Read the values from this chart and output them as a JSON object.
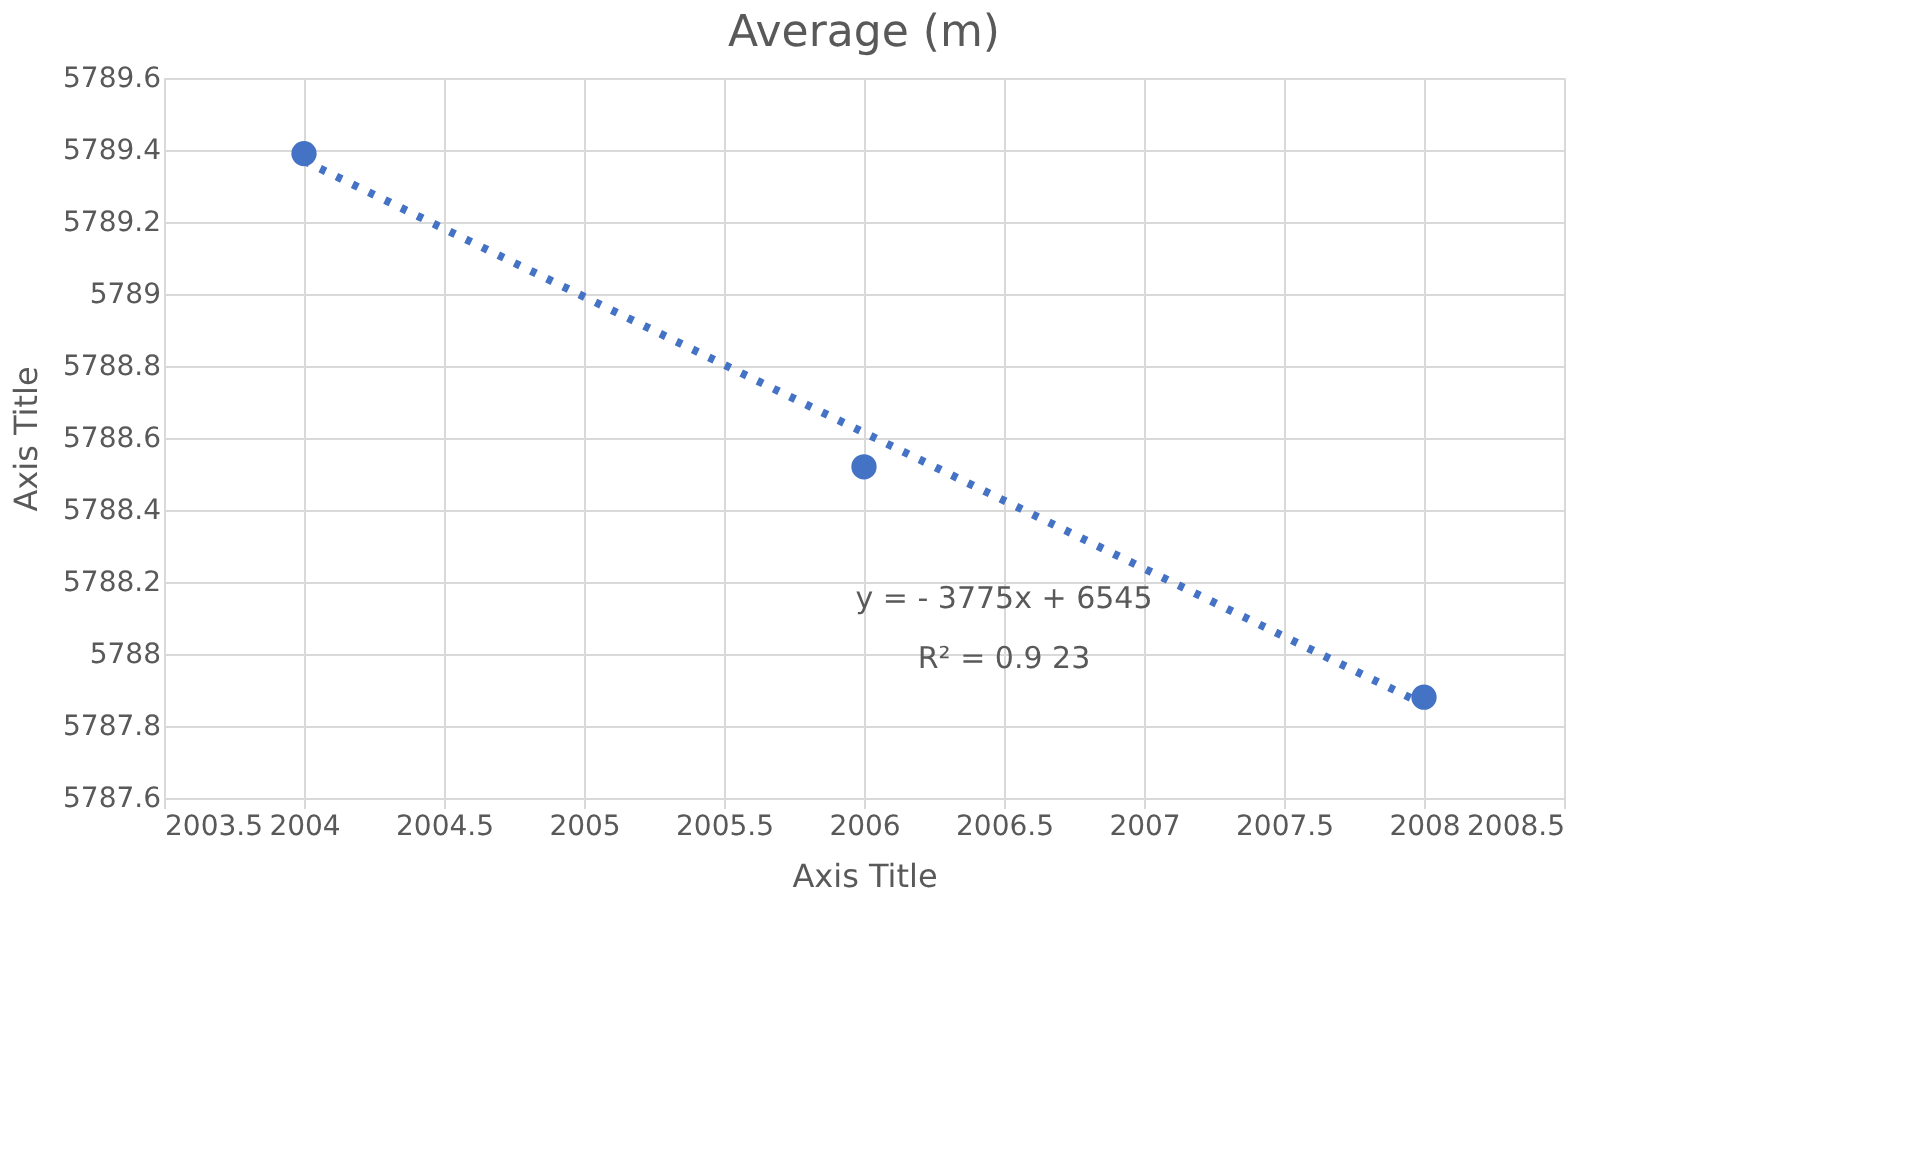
{
  "chart_data": {
    "type": "scatter",
    "title": "Average (m)",
    "xlabel": "Axis Title",
    "ylabel": "Axis Title",
    "x": [
      2004,
      2006,
      2008
    ],
    "series": [
      {
        "type": "scatter",
        "color": "#4472c4",
        "values": [
          5789.39,
          5788.52,
          5787.88
        ],
        "marker": "circle"
      },
      {
        "type": "line",
        "color": "#4472c4",
        "x": [
          2004,
          2008
        ],
        "values": [
          5789.37,
          5787.86
        ],
        "line_style": "dotted",
        "marker": "none"
      }
    ],
    "xlim": [
      2003.5,
      2008.5
    ],
    "xticks": [
      2003.5,
      2004,
      2004.5,
      2005,
      2005.5,
      2006,
      2006.5,
      2007,
      2007.5,
      2008,
      2008.5
    ],
    "ylim": [
      5787.6,
      5789.6
    ],
    "yticks": [
      5787.6,
      5787.8,
      5788,
      5788.2,
      5788.4,
      5788.6,
      5788.8,
      5789,
      5789.2,
      5789.4,
      5789.6
    ],
    "annotations": [
      "y = -  3775x + 6545",
      "R² = 0.9  23"
    ],
    "grid": true
  }
}
